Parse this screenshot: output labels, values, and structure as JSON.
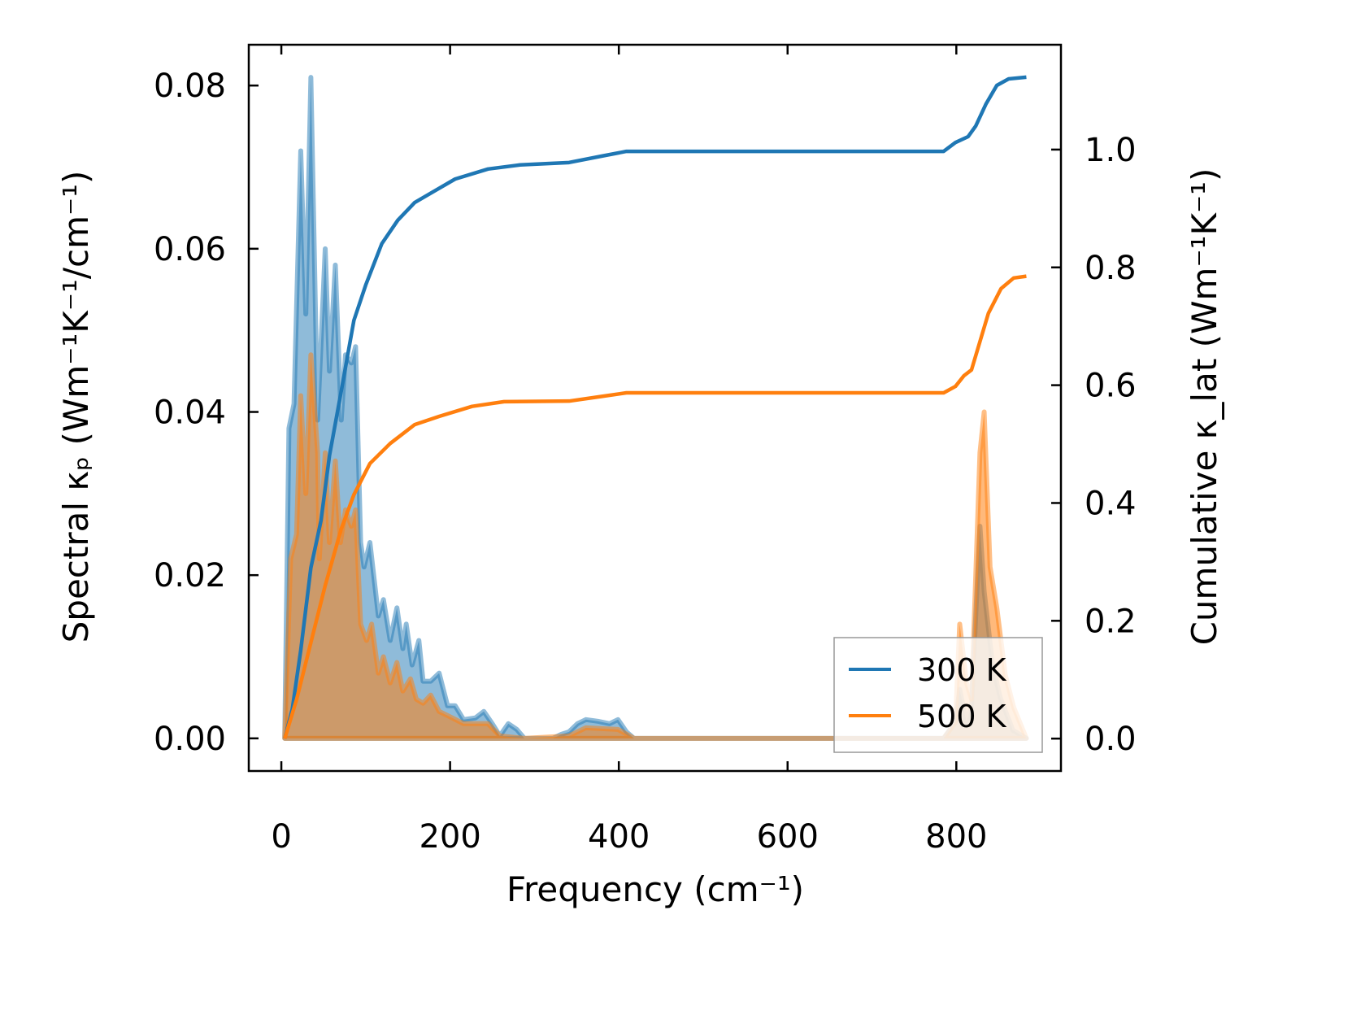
{
  "chart_data": {
    "type": "area",
    "xlabel": "Frequency (cm⁻¹)",
    "ylabel_left": "Spectral κₚ (Wm⁻¹K⁻¹/cm⁻¹)",
    "ylabel_right": "Cumulative κ_lat (Wm⁻¹K⁻¹)",
    "xlim": [
      -38.6,
      924
    ],
    "ylim_left": [
      -0.004,
      0.085
    ],
    "ylim_right": [
      -0.055,
      1.178
    ],
    "xticks": [
      0,
      200,
      400,
      600,
      800
    ],
    "xtick_labels": [
      "0",
      "200",
      "400",
      "600",
      "800"
    ],
    "yticks_left": [
      0,
      0.02,
      0.04,
      0.06,
      0.08
    ],
    "ytick_labels_left": [
      "0.00",
      "0.02",
      "0.04",
      "0.06",
      "0.08"
    ],
    "yticks_right": [
      0,
      0.2,
      0.4,
      0.6,
      0.8,
      1.0
    ],
    "ytick_labels_right": [
      "0.0",
      "0.2",
      "0.4",
      "0.6",
      "0.8",
      "1.0"
    ],
    "grid": false,
    "legend_position": "bottom-right",
    "series": [
      {
        "name": "300 K",
        "color": "#1f77b4",
        "spectral": {
          "x": [
            4,
            9,
            15,
            23,
            29,
            35,
            43,
            52,
            57,
            64,
            71,
            76,
            83,
            88,
            94,
            98,
            105,
            115,
            121,
            129,
            137,
            144,
            148,
            155,
            163,
            168,
            177,
            187,
            197,
            206,
            216,
            230,
            240,
            250,
            259,
            269,
            279,
            288,
            322,
            332,
            341,
            351,
            361,
            375,
            389,
            399,
            409,
            418,
            785,
            799,
            804,
            812,
            818,
            828,
            833,
            843,
            852,
            867,
            883
          ],
          "y": [
            0,
            0.038,
            0.041,
            0.072,
            0.052,
            0.081,
            0.039,
            0.06,
            0.045,
            0.058,
            0.039,
            0.047,
            0.046,
            0.048,
            0.024,
            0.021,
            0.024,
            0.015,
            0.017,
            0.012,
            0.016,
            0.011,
            0.014,
            0.009,
            0.012,
            0.007,
            0.007,
            0.008,
            0.004,
            0.004,
            0.0023,
            0.0025,
            0.0033,
            0.0018,
            0.0003,
            0.0018,
            0.0011,
            0,
            0,
            0.0005,
            0.0008,
            0.0018,
            0.0023,
            0.0021,
            0.0018,
            0.0023,
            0.0008,
            0,
            0,
            0.002,
            0.006,
            0.002,
            0.004,
            0.026,
            0.018,
            0.009,
            0.005,
            0.001,
            0
          ]
        },
        "cumulative": {
          "x": [
            4,
            13,
            23,
            35,
            47,
            57,
            71,
            86,
            100,
            119,
            138,
            158,
            182,
            206,
            245,
            283,
            341,
            380,
            409,
            785,
            799,
            814,
            823,
            835,
            848,
            862,
            883
          ],
          "y": [
            0,
            0.05,
            0.15,
            0.29,
            0.37,
            0.48,
            0.59,
            0.71,
            0.77,
            0.84,
            0.88,
            0.91,
            0.93,
            0.95,
            0.967,
            0.974,
            0.978,
            0.989,
            0.997,
            0.997,
            1.012,
            1.022,
            1.04,
            1.077,
            1.109,
            1.12,
            1.123
          ]
        }
      },
      {
        "name": "500 K",
        "color": "#ff7f0e",
        "spectral": {
          "x": [
            4,
            11,
            18,
            23,
            29,
            35,
            43,
            45,
            52,
            57,
            64,
            70,
            76,
            83,
            88,
            94,
            101,
            107,
            115,
            121,
            129,
            137,
            144,
            153,
            160,
            168,
            177,
            187,
            197,
            216,
            245,
            259,
            288,
            341,
            361,
            399,
            418,
            785,
            799,
            804,
            812,
            818,
            828,
            833,
            840,
            848,
            858,
            868,
            883
          ],
          "y": [
            0,
            0.022,
            0.025,
            0.042,
            0.03,
            0.047,
            0.035,
            0.022,
            0.035,
            0.024,
            0.034,
            0.024,
            0.028,
            0.026,
            0.028,
            0.014,
            0.012,
            0.014,
            0.008,
            0.01,
            0.0068,
            0.0093,
            0.0058,
            0.0073,
            0.0048,
            0.0043,
            0.0053,
            0.0033,
            0.0028,
            0.0018,
            0.0018,
            0.0003,
            0,
            0.0003,
            0.0013,
            0.0011,
            0,
            0,
            0.002,
            0.014,
            0.0068,
            0.0048,
            0.035,
            0.04,
            0.021,
            0.016,
            0.0078,
            0.0038,
            0
          ]
        },
        "cumulative": {
          "x": [
            4,
            18,
            35,
            52,
            71,
            86,
            105,
            129,
            158,
            187,
            226,
            264,
            341,
            380,
            409,
            785,
            799,
            809,
            818,
            828,
            838,
            853,
            868,
            883
          ],
          "y": [
            0,
            0.066,
            0.163,
            0.26,
            0.356,
            0.414,
            0.467,
            0.501,
            0.533,
            0.547,
            0.564,
            0.572,
            0.573,
            0.581,
            0.587,
            0.587,
            0.598,
            0.616,
            0.626,
            0.674,
            0.722,
            0.764,
            0.782,
            0.785
          ]
        }
      }
    ]
  }
}
